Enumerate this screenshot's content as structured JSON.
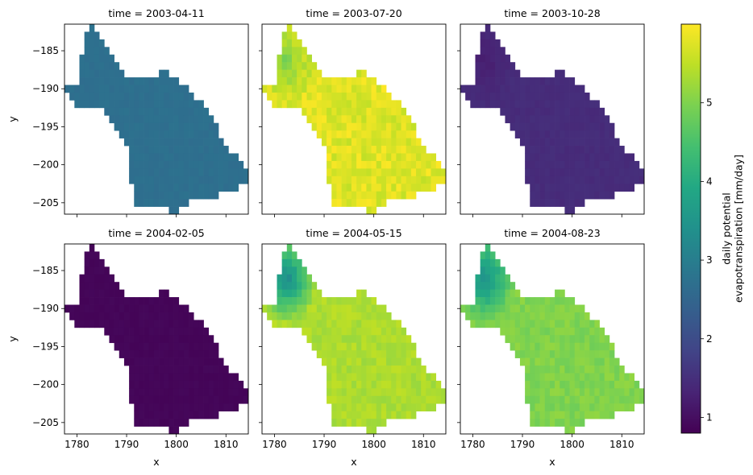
{
  "chart_data": {
    "type": "heatmap",
    "xlabel": "x",
    "ylabel": "y",
    "xlim": [
      1777.5,
      1814.5
    ],
    "ylim": [
      -206.5,
      -181.5
    ],
    "x_ticks": [
      "1780",
      "1790",
      "1800",
      "1810"
    ],
    "y_ticks": [
      "−185",
      "−190",
      "−195",
      "−200",
      "−205"
    ],
    "grid": false,
    "colorscale": "viridis",
    "colorbar": {
      "label_line1": "daily potential",
      "label_line2": "evapotranspiration [mm/day]",
      "range": [
        0.8,
        6.0
      ],
      "ticks": [
        "1",
        "2",
        "3",
        "4",
        "5"
      ],
      "tick_values": [
        1,
        2,
        3,
        4,
        5
      ]
    },
    "panels": [
      {
        "title": "time = 2003-04-11",
        "mean_value": 2.7,
        "spread": 0.05,
        "cluster_boost": 0.0
      },
      {
        "title": "time = 2003-07-20",
        "mean_value": 5.75,
        "spread": 0.25,
        "cluster_boost": -0.7
      },
      {
        "title": "time = 2003-10-28",
        "mean_value": 1.45,
        "spread": 0.05,
        "cluster_boost": -0.2
      },
      {
        "title": "time = 2004-02-05",
        "mean_value": 0.87,
        "spread": 0.03,
        "cluster_boost": 0.0
      },
      {
        "title": "time = 2004-05-15",
        "mean_value": 5.35,
        "spread": 0.15,
        "cluster_boost": -2.1
      },
      {
        "title": "time = 2004-08-23",
        "mean_value": 5.0,
        "spread": 0.15,
        "cluster_boost": -1.6
      }
    ],
    "region_rows": [
      {
        "y": -182,
        "cols": [
          [
            1783,
            1783
          ]
        ]
      },
      {
        "y": -183,
        "cols": [
          [
            1782,
            1784
          ]
        ]
      },
      {
        "y": -184,
        "cols": [
          [
            1782,
            1785
          ]
        ]
      },
      {
        "y": -185,
        "cols": [
          [
            1782,
            1786
          ]
        ]
      },
      {
        "y": -186,
        "cols": [
          [
            1781,
            1787
          ]
        ]
      },
      {
        "y": -187,
        "cols": [
          [
            1781,
            1788
          ]
        ]
      },
      {
        "y": -188,
        "cols": [
          [
            1781,
            1789
          ],
          [
            1797,
            1798
          ]
        ]
      },
      {
        "y": -189,
        "cols": [
          [
            1781,
            1800
          ]
        ]
      },
      {
        "y": -190,
        "cols": [
          [
            1778,
            1802
          ]
        ]
      },
      {
        "y": -191,
        "cols": [
          [
            1779,
            1803
          ]
        ]
      },
      {
        "y": -192,
        "cols": [
          [
            1780,
            1805
          ]
        ]
      },
      {
        "y": -193,
        "cols": [
          [
            1786,
            1806
          ]
        ]
      },
      {
        "y": -194,
        "cols": [
          [
            1787,
            1807
          ]
        ]
      },
      {
        "y": -195,
        "cols": [
          [
            1788,
            1808
          ]
        ]
      },
      {
        "y": -196,
        "cols": [
          [
            1789,
            1808
          ]
        ]
      },
      {
        "y": -197,
        "cols": [
          [
            1790,
            1809
          ]
        ]
      },
      {
        "y": -198,
        "cols": [
          [
            1791,
            1810
          ]
        ]
      },
      {
        "y": -199,
        "cols": [
          [
            1791,
            1812
          ]
        ]
      },
      {
        "y": -200,
        "cols": [
          [
            1791,
            1813
          ]
        ]
      },
      {
        "y": -201,
        "cols": [
          [
            1791,
            1814
          ]
        ]
      },
      {
        "y": -202,
        "cols": [
          [
            1791,
            1814
          ]
        ]
      },
      {
        "y": -203,
        "cols": [
          [
            1792,
            1812
          ]
        ]
      },
      {
        "y": -204,
        "cols": [
          [
            1792,
            1808
          ]
        ]
      },
      {
        "y": -205,
        "cols": [
          [
            1792,
            1802
          ]
        ]
      },
      {
        "y": -206,
        "cols": [
          [
            1799,
            1800
          ]
        ]
      }
    ]
  }
}
